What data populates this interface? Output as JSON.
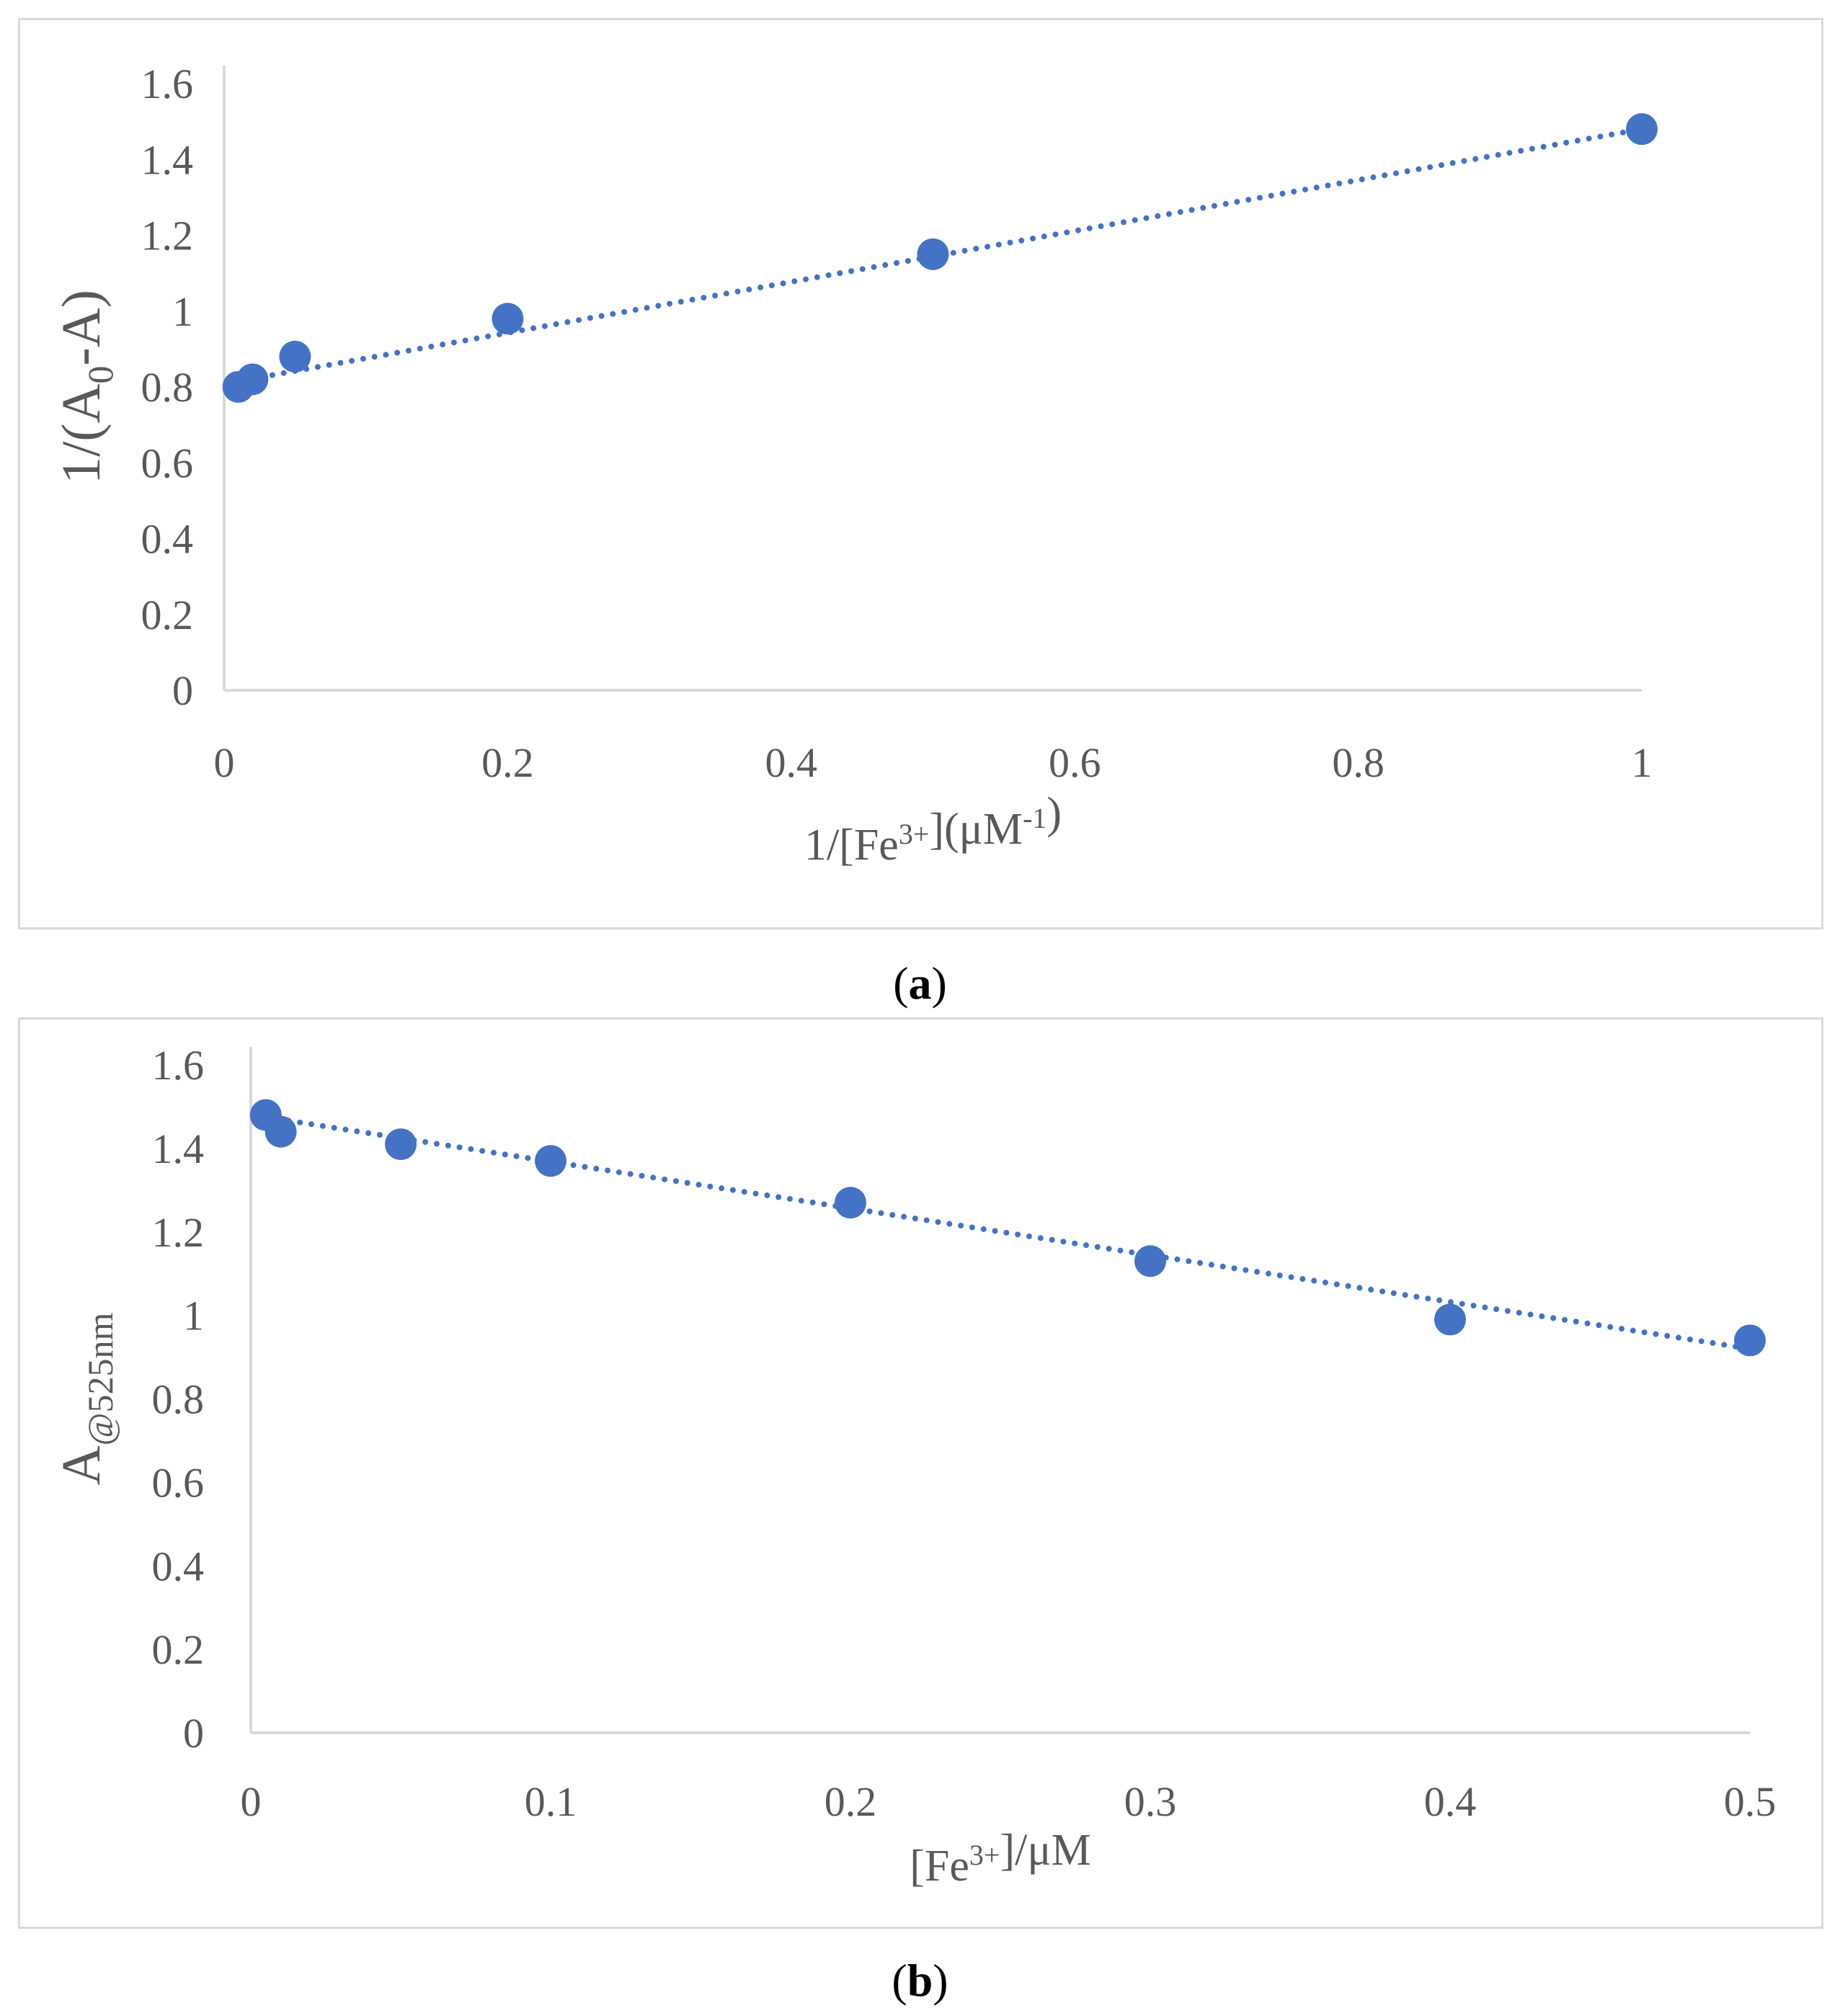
{
  "chart_data": [
    {
      "id": "a",
      "type": "scatter",
      "caption": "a",
      "xlabel": {
        "prefix": "1/[Fe",
        "sup1": "3+",
        "mid": "](μM",
        "sup2": "-1",
        "suffix": ")"
      },
      "ylabel": {
        "prefix": "1/(A",
        "sub": "0",
        "suffix": "-A)"
      },
      "xlim": [
        0,
        1
      ],
      "ylim": [
        0,
        1.6
      ],
      "xticks": [
        {
          "value": 0,
          "label": "0"
        },
        {
          "value": 0.2,
          "label": "0.2"
        },
        {
          "value": 0.4,
          "label": "0.4"
        },
        {
          "value": 0.6,
          "label": "0.6"
        },
        {
          "value": 0.8,
          "label": "0.8"
        },
        {
          "value": 1,
          "label": "1"
        }
      ],
      "yticks": [
        {
          "value": 0,
          "label": "0"
        },
        {
          "value": 0.2,
          "label": "0.2"
        },
        {
          "value": 0.4,
          "label": "0.4"
        },
        {
          "value": 0.6,
          "label": "0.6"
        },
        {
          "value": 0.8,
          "label": "0.8"
        },
        {
          "value": 1,
          "label": "1"
        },
        {
          "value": 1.2,
          "label": "1.2"
        },
        {
          "value": 1.4,
          "label": "1.4"
        },
        {
          "value": 1.6,
          "label": "1.6"
        }
      ],
      "x": [
        0.01,
        0.02,
        0.05,
        0.2,
        0.5,
        1.0
      ],
      "y": [
        0.8,
        0.82,
        0.88,
        0.98,
        1.15,
        1.48
      ],
      "trendline": {
        "style": "dotted",
        "x": [
          0.01,
          1.0
        ],
        "y": [
          0.815,
          1.48
        ]
      },
      "color": "#4472c4"
    },
    {
      "id": "b",
      "type": "scatter",
      "caption": "b",
      "xlabel": {
        "prefix": "[Fe",
        "sup1": "3+",
        "mid": "]/μM",
        "sup2": "",
        "suffix": ""
      },
      "ylabel": {
        "prefix": "A",
        "sub": "@525nm",
        "suffix": ""
      },
      "xlim": [
        0,
        0.5
      ],
      "ylim": [
        0,
        1.6
      ],
      "xticks": [
        {
          "value": 0,
          "label": "0"
        },
        {
          "value": 0.1,
          "label": "0.1"
        },
        {
          "value": 0.2,
          "label": "0.2"
        },
        {
          "value": 0.3,
          "label": "0.3"
        },
        {
          "value": 0.4,
          "label": "0.4"
        },
        {
          "value": 0.5,
          "label": "0.5"
        }
      ],
      "yticks": [
        {
          "value": 0,
          "label": "0"
        },
        {
          "value": 0.2,
          "label": "0.2"
        },
        {
          "value": 0.4,
          "label": "0.4"
        },
        {
          "value": 0.6,
          "label": "0.6"
        },
        {
          "value": 0.8,
          "label": "0.8"
        },
        {
          "value": 1,
          "label": "1"
        },
        {
          "value": 1.2,
          "label": "1.2"
        },
        {
          "value": 1.4,
          "label": "1.4"
        },
        {
          "value": 1.6,
          "label": "1.6"
        }
      ],
      "x": [
        0.005,
        0.01,
        0.05,
        0.1,
        0.2,
        0.3,
        0.4,
        0.5
      ],
      "y": [
        1.48,
        1.44,
        1.41,
        1.37,
        1.27,
        1.13,
        0.99,
        0.94
      ],
      "trendline": {
        "style": "dotted",
        "x": [
          0.005,
          0.5
        ],
        "y": [
          1.475,
          0.92
        ]
      },
      "color": "#4472c4"
    }
  ]
}
